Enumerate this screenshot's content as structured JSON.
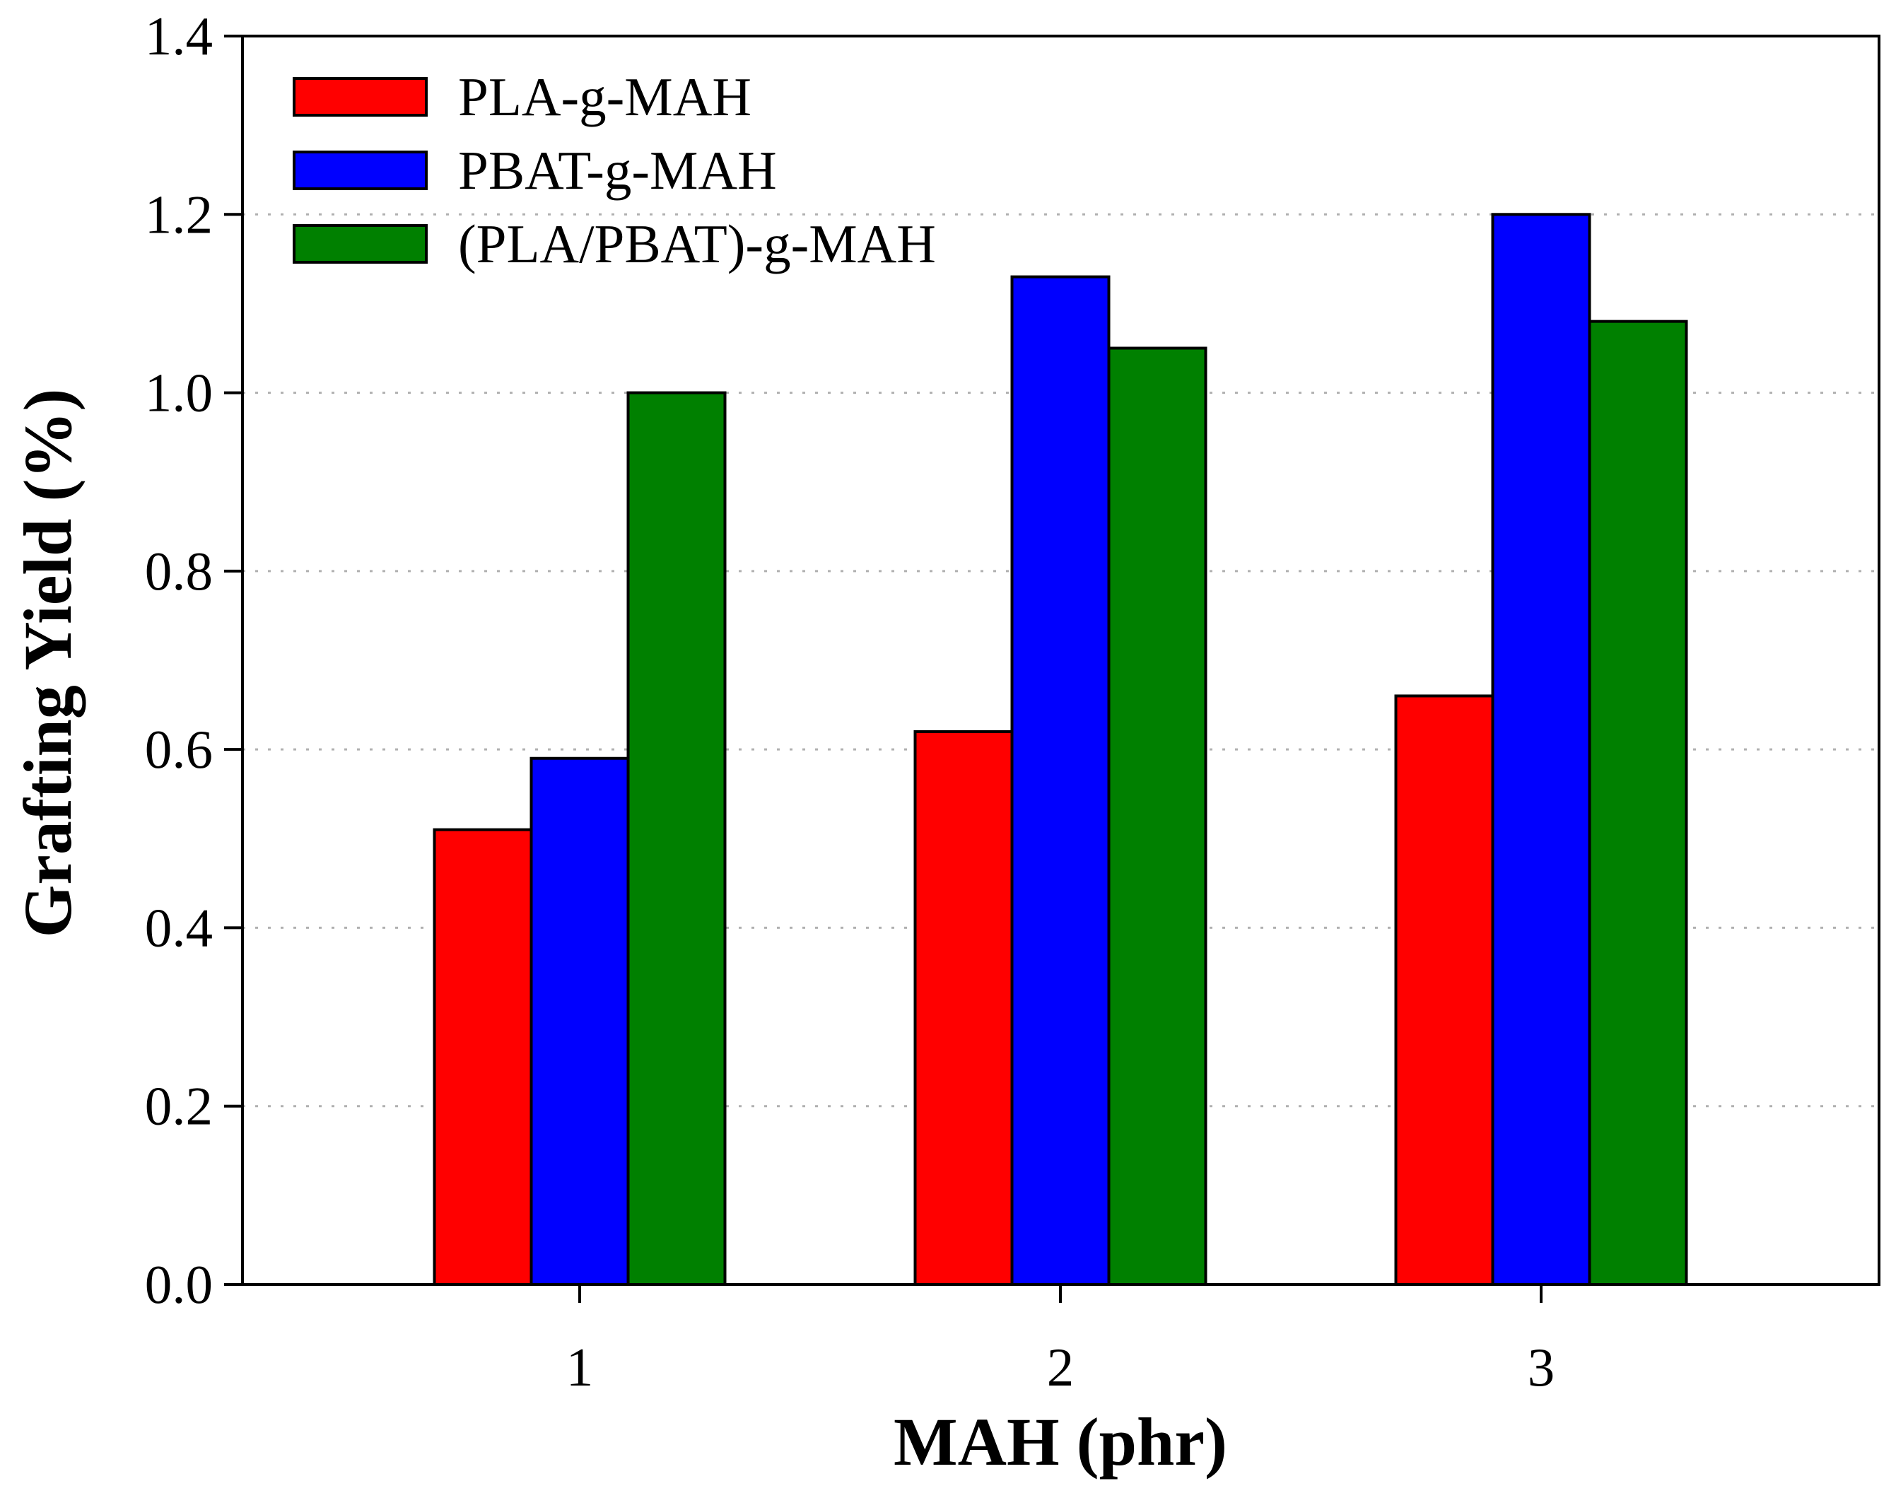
{
  "chart_data": {
    "type": "bar",
    "title": "",
    "xlabel": "MAH (phr)",
    "ylabel": "Grafting Yield (%)",
    "categories": [
      "1",
      "2",
      "3"
    ],
    "ylim": [
      0,
      1.4
    ],
    "yticks": [
      "0.0",
      "0.2",
      "0.4",
      "0.6",
      "0.8",
      "1.0",
      "1.2",
      "1.4"
    ],
    "grid": "horizontal dotted",
    "legend_position": "top-left",
    "series": [
      {
        "name": "PLA-g-MAH",
        "color": "#ff0000",
        "values": [
          0.51,
          0.62,
          0.66
        ]
      },
      {
        "name": "PBAT-g-MAH",
        "color": "#0000ff",
        "values": [
          0.59,
          1.13,
          1.2
        ]
      },
      {
        "name": "(PLA/PBAT)-g-MAH",
        "color": "#008000",
        "values": [
          1.0,
          1.05,
          1.08
        ]
      }
    ]
  }
}
